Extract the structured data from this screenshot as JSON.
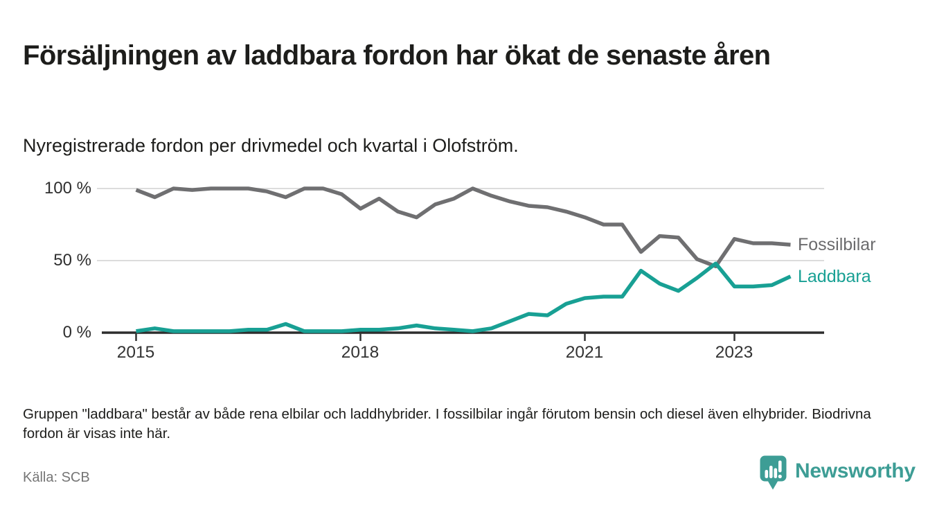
{
  "header": {
    "title": "Försäljningen av laddbara fordon har ökat de senaste åren",
    "subtitle": "Nyregistrerade fordon per drivmedel och kvartal i Olofström."
  },
  "chart_data": {
    "type": "line",
    "title": "Försäljningen av laddbara fordon har ökat de senaste åren",
    "subtitle": "Nyregistrerade fordon per drivmedel och kvartal i Olofström.",
    "unit": "%",
    "categories": [
      "2015 Q1",
      "2015 Q2",
      "2015 Q3",
      "2015 Q4",
      "2016 Q1",
      "2016 Q2",
      "2016 Q3",
      "2016 Q4",
      "2017 Q1",
      "2017 Q2",
      "2017 Q3",
      "2017 Q4",
      "2018 Q1",
      "2018 Q2",
      "2018 Q3",
      "2018 Q4",
      "2019 Q1",
      "2019 Q2",
      "2019 Q3",
      "2019 Q4",
      "2020 Q1",
      "2020 Q2",
      "2020 Q3",
      "2020 Q4",
      "2021 Q1",
      "2021 Q2",
      "2021 Q3",
      "2021 Q4",
      "2022 Q1",
      "2022 Q2",
      "2022 Q3",
      "2022 Q4",
      "2023 Q1",
      "2023 Q2",
      "2023 Q3",
      "2023 Q4"
    ],
    "series": [
      {
        "name": "Fossilbilar",
        "color": "#6f6f71",
        "values": [
          99,
          94,
          100,
          99,
          100,
          100,
          100,
          98,
          94,
          100,
          100,
          96,
          86,
          93,
          84,
          80,
          89,
          93,
          100,
          95,
          91,
          88,
          87,
          84,
          80,
          75,
          75,
          56,
          67,
          66,
          51,
          46,
          65,
          62,
          62,
          61
        ]
      },
      {
        "name": "Laddbara",
        "color": "#18a094",
        "values": [
          1,
          3,
          1,
          1,
          1,
          1,
          2,
          2,
          6,
          1,
          1,
          1,
          2,
          2,
          3,
          5,
          3,
          2,
          1,
          3,
          8,
          13,
          12,
          20,
          24,
          25,
          25,
          43,
          34,
          29,
          38,
          48,
          32,
          32,
          33,
          39
        ]
      }
    ],
    "ylim": [
      0,
      100
    ],
    "y_tick_labels": [
      "0 %",
      "50 %",
      "100 %"
    ],
    "x_ticks": [
      {
        "label": "2015",
        "index": 0
      },
      {
        "label": "2018",
        "index": 12
      },
      {
        "label": "2021",
        "index": 24
      },
      {
        "label": "2023",
        "index": 32
      }
    ],
    "grid": "horizontal gridlines at 50 % and 100 %",
    "legend_position": "right of line ends"
  },
  "legend": {
    "fossil_label": "Fossilbilar",
    "laddbara_label": "Laddbara"
  },
  "colors": {
    "fossil_line": "#6f6f71",
    "laddbara_line": "#18a094",
    "brand_teal": "#3d9d95",
    "gridline": "#dcdcdc",
    "axis": "#2d2d2d",
    "title_text": "#1d1d1b"
  },
  "footer": {
    "note": "Gruppen \"laddbara\" består av både rena elbilar och laddhybrider. I fossilbilar ingår förutom bensin och diesel även elhybrider. Biodrivna fordon är visas inte här.",
    "source": "Källa: SCB",
    "brand_name": "Newsworthy"
  }
}
